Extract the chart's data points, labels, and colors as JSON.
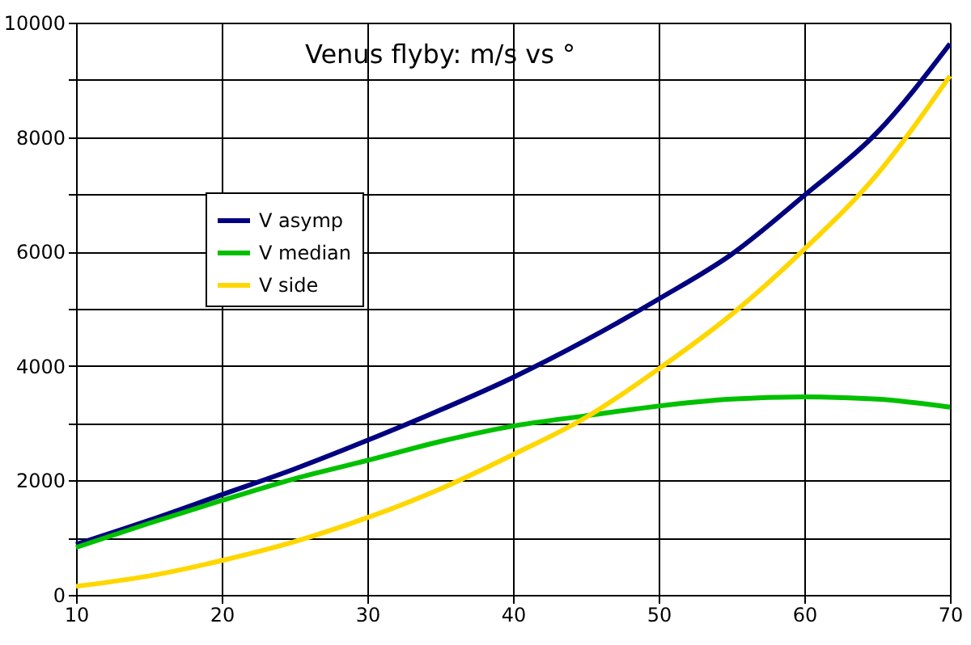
{
  "chart_data": {
    "type": "line",
    "title": "Venus flyby: m/s vs °",
    "x": [
      10,
      15,
      20,
      25,
      30,
      35,
      40,
      45,
      50,
      55,
      60,
      65,
      70
    ],
    "series": [
      {
        "name": "V asymp",
        "color": "#000080",
        "values": [
          880,
          1300,
          1750,
          2200,
          2700,
          3230,
          3800,
          4450,
          5170,
          5950,
          6980,
          8080,
          9630
        ]
      },
      {
        "name": "V median",
        "color": "#00c000",
        "values": [
          830,
          1250,
          1650,
          2030,
          2350,
          2680,
          2950,
          3130,
          3300,
          3420,
          3460,
          3420,
          3280
        ]
      },
      {
        "name": "V side",
        "color": "#ffd700",
        "values": [
          150,
          330,
          600,
          930,
          1350,
          1850,
          2450,
          3100,
          3950,
          4900,
          6040,
          7350,
          9070
        ]
      }
    ],
    "xlim": [
      10,
      70
    ],
    "xticks": [
      10,
      20,
      30,
      40,
      50,
      60,
      70
    ],
    "ylim": [
      0,
      10000
    ],
    "yticks": [
      0,
      {
        "value": 1000,
        "label": null
      },
      2000,
      {
        "value": 3000,
        "label": null
      },
      4000,
      {
        "value": 5000,
        "label": null
      },
      6000,
      {
        "value": 7000,
        "label": null
      },
      8000,
      {
        "value": 9000,
        "label": null
      },
      10000
    ],
    "grid": true,
    "legend": "left",
    "marker": "none",
    "line_style": "solid"
  }
}
